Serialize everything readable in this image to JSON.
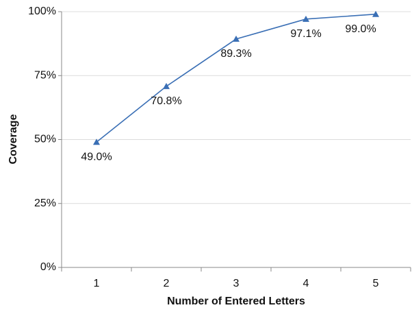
{
  "chart_data": {
    "type": "line",
    "x_label": "Number of Entered Letters",
    "y_label": "Coverage",
    "categories": [
      "1",
      "2",
      "3",
      "4",
      "5"
    ],
    "series": [
      {
        "color": "#3a6fb5",
        "values": [
          49.0,
          70.8,
          89.3,
          97.1,
          99.0
        ],
        "value_labels": [
          "49.0%",
          "70.8%",
          "89.3%",
          "97.1%",
          "99.0%"
        ]
      }
    ],
    "ylim": [
      0,
      100
    ],
    "yticks": [
      {
        "value": 0,
        "label": "0%"
      },
      {
        "value": 25,
        "label": "25%"
      },
      {
        "value": 50,
        "label": "50%"
      },
      {
        "value": 75,
        "label": "75%"
      },
      {
        "value": 100,
        "label": "100%"
      }
    ],
    "grid": true
  }
}
